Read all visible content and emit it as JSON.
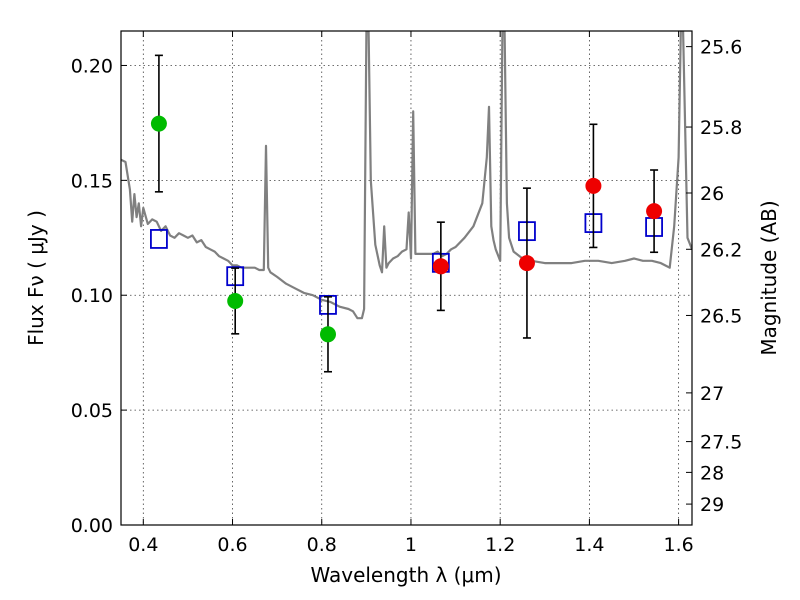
{
  "chart_data": {
    "type": "scatter",
    "xlabel": "Wavelength  λ (μm)",
    "ylabel": "Flux  Fν  ( μJy )",
    "ylabel_right": "Magnitude (AB)",
    "xlim": [
      0.35,
      1.63
    ],
    "ylim": [
      0.0,
      0.215
    ],
    "grid": true,
    "x_ticks": [
      {
        "value": 0.4,
        "label": "0.4"
      },
      {
        "value": 0.6,
        "label": "0.6"
      },
      {
        "value": 0.8,
        "label": "0.8"
      },
      {
        "value": 1.0,
        "label": "1"
      },
      {
        "value": 1.2,
        "label": "1.2"
      },
      {
        "value": 1.4,
        "label": "1.4"
      },
      {
        "value": 1.6,
        "label": "1.6"
      }
    ],
    "y_ticks": [
      {
        "value": 0.0,
        "label": "0.00"
      },
      {
        "value": 0.05,
        "label": "0.05"
      },
      {
        "value": 0.1,
        "label": "0.10"
      },
      {
        "value": 0.15,
        "label": "0.15"
      },
      {
        "value": 0.2,
        "label": "0.20"
      }
    ],
    "right_ticks": [
      {
        "label": "25.6",
        "flux": 0.2082
      },
      {
        "label": "25.8",
        "flux": 0.1732
      },
      {
        "label": "26",
        "flux": 0.1445
      },
      {
        "label": "26.2",
        "flux": 0.12
      },
      {
        "label": "26.5",
        "flux": 0.0912
      },
      {
        "label": "27",
        "flux": 0.0575
      },
      {
        "label": "27.5",
        "flux": 0.0363
      },
      {
        "label": "28",
        "flux": 0.0229
      },
      {
        "label": "29",
        "flux": 0.0091
      }
    ],
    "series": [
      {
        "kind": "model_points",
        "marker": "open-square",
        "color": "#0000cc",
        "x": [
          0.435,
          0.606,
          0.814,
          1.067,
          1.26,
          1.409,
          1.545
        ],
        "y": [
          0.1245,
          0.1083,
          0.0958,
          0.1141,
          0.1279,
          0.1314,
          0.1297
        ]
      },
      {
        "kind": "optical_observed",
        "marker": "filled-circle",
        "color": "#00bb00",
        "x": [
          0.435,
          0.606,
          0.814
        ],
        "y": [
          0.1747,
          0.0975,
          0.083
        ],
        "yerr": [
          0.0297,
          0.0143,
          0.0163
        ]
      },
      {
        "kind": "nir_observed",
        "marker": "filled-circle",
        "color": "#ee0000",
        "x": [
          1.067,
          1.26,
          1.409,
          1.545
        ],
        "y": [
          0.1126,
          0.114,
          0.1476,
          0.1366
        ],
        "yerr": [
          0.0192,
          0.0326,
          0.0268,
          0.0179
        ]
      },
      {
        "kind": "model_spectrum",
        "color": "#808080",
        "x": [
          0.35,
          0.36,
          0.37,
          0.375,
          0.38,
          0.385,
          0.39,
          0.395,
          0.4,
          0.41,
          0.42,
          0.43,
          0.44,
          0.45,
          0.46,
          0.47,
          0.48,
          0.49,
          0.5,
          0.51,
          0.52,
          0.53,
          0.54,
          0.55,
          0.56,
          0.57,
          0.58,
          0.59,
          0.6,
          0.61,
          0.62,
          0.63,
          0.64,
          0.65,
          0.66,
          0.67,
          0.675,
          0.68,
          0.685,
          0.7,
          0.72,
          0.74,
          0.76,
          0.78,
          0.8,
          0.82,
          0.84,
          0.86,
          0.87,
          0.88,
          0.89,
          0.895,
          0.9,
          0.905,
          0.91,
          0.92,
          0.93,
          0.935,
          0.94,
          0.945,
          0.95,
          0.96,
          0.97,
          0.98,
          0.99,
          0.995,
          1.0,
          1.005,
          1.01,
          1.02,
          1.03,
          1.05,
          1.06,
          1.07,
          1.08,
          1.09,
          1.1,
          1.12,
          1.14,
          1.16,
          1.17,
          1.175,
          1.18,
          1.185,
          1.19,
          1.2,
          1.205,
          1.21,
          1.215,
          1.22,
          1.23,
          1.25,
          1.27,
          1.3,
          1.33,
          1.36,
          1.39,
          1.42,
          1.45,
          1.48,
          1.5,
          1.52,
          1.54,
          1.56,
          1.57,
          1.58,
          1.59,
          1.6,
          1.605,
          1.61,
          1.62,
          1.63
        ],
        "y": [
          0.159,
          0.158,
          0.146,
          0.132,
          0.144,
          0.134,
          0.14,
          0.13,
          0.138,
          0.131,
          0.133,
          0.132,
          0.128,
          0.13,
          0.126,
          0.125,
          0.127,
          0.126,
          0.125,
          0.126,
          0.123,
          0.124,
          0.121,
          0.12,
          0.119,
          0.117,
          0.116,
          0.115,
          0.113,
          0.113,
          0.112,
          0.112,
          0.112,
          0.112,
          0.111,
          0.111,
          0.165,
          0.112,
          0.11,
          0.108,
          0.105,
          0.103,
          0.101,
          0.1,
          0.098,
          0.097,
          0.095,
          0.094,
          0.093,
          0.09,
          0.09,
          0.094,
          0.215,
          0.215,
          0.15,
          0.122,
          0.113,
          0.11,
          0.13,
          0.112,
          0.114,
          0.116,
          0.117,
          0.119,
          0.12,
          0.136,
          0.116,
          0.18,
          0.118,
          0.118,
          0.118,
          0.118,
          0.119,
          0.117,
          0.118,
          0.12,
          0.121,
          0.125,
          0.13,
          0.14,
          0.16,
          0.182,
          0.13,
          0.124,
          0.12,
          0.115,
          0.215,
          0.215,
          0.14,
          0.125,
          0.119,
          0.116,
          0.115,
          0.114,
          0.114,
          0.114,
          0.115,
          0.115,
          0.114,
          0.115,
          0.116,
          0.115,
          0.115,
          0.114,
          0.113,
          0.112,
          0.13,
          0.16,
          0.215,
          0.215,
          0.125,
          0.12
        ]
      }
    ]
  }
}
